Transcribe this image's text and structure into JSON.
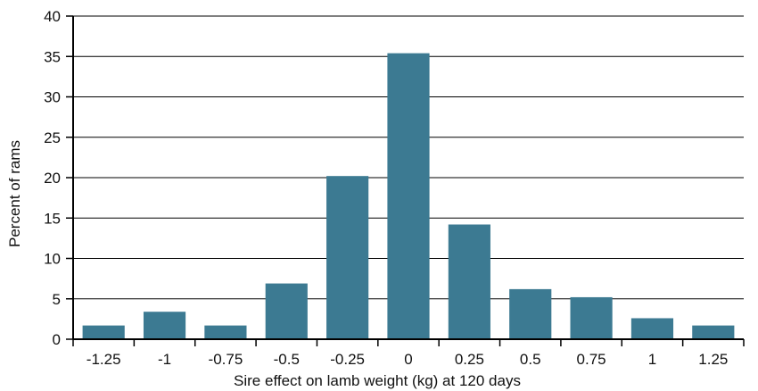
{
  "chart_data": {
    "type": "bar",
    "categories": [
      "-1.25",
      "-1",
      "-0.75",
      "-0.5",
      "-0.25",
      "0",
      "0.25",
      "0.5",
      "0.75",
      "1",
      "1.25"
    ],
    "values": [
      1.7,
      3.4,
      1.7,
      6.9,
      20.2,
      35.4,
      14.2,
      6.2,
      5.2,
      2.6,
      1.7
    ],
    "title": "",
    "xlabel": "Sire effect on lamb weight (kg) at 120 days",
    "ylabel": "Percent of rams",
    "ylim": [
      0,
      40
    ],
    "yticks": [
      "0",
      "5",
      "10",
      "15",
      "20",
      "25",
      "30",
      "35",
      "40"
    ],
    "grid": true,
    "bar_color": "#3c7a92"
  }
}
